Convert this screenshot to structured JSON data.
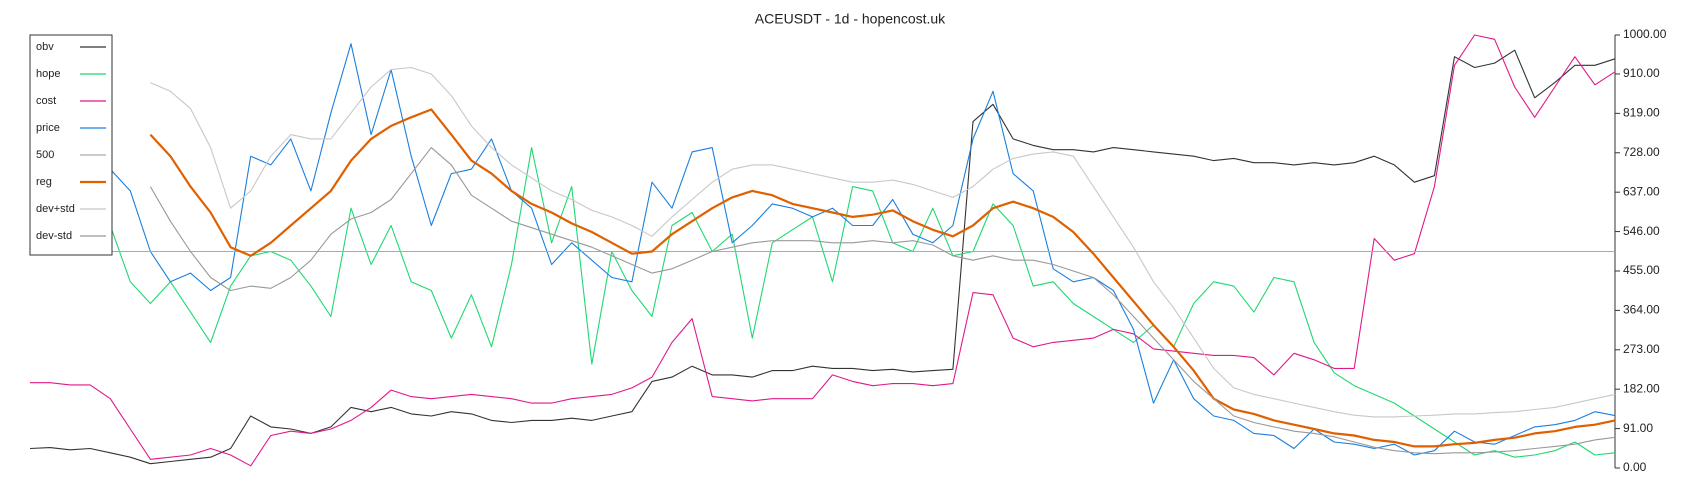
{
  "chart_data": {
    "type": "line",
    "title": "ACEUSDT - 1d - hopencost.uk",
    "ylim": [
      0,
      1000
    ],
    "yticks": [
      {
        "value": 0,
        "label": "0.00"
      },
      {
        "value": 91,
        "label": "91.00"
      },
      {
        "value": 182,
        "label": "182.00"
      },
      {
        "value": 273,
        "label": "273.00"
      },
      {
        "value": 364,
        "label": "364.00"
      },
      {
        "value": 455,
        "label": "455.00"
      },
      {
        "value": 546,
        "label": "546.00"
      },
      {
        "value": 637,
        "label": "637.00"
      },
      {
        "value": 728,
        "label": "728.00"
      },
      {
        "value": 819,
        "label": "819.00"
      },
      {
        "value": 910,
        "label": "910.00"
      },
      {
        "value": 1000,
        "label": "1000.00"
      }
    ],
    "legend_position": "upper left",
    "series": [
      {
        "name": "obv",
        "color": "#333333",
        "values": [
          45,
          47,
          42,
          45,
          35,
          25,
          10,
          15,
          20,
          25,
          45,
          120,
          95,
          90,
          80,
          95,
          140,
          130,
          140,
          125,
          120,
          130,
          125,
          110,
          105,
          110,
          110,
          115,
          110,
          120,
          130,
          200,
          210,
          235,
          215,
          215,
          210,
          225,
          225,
          235,
          230,
          230,
          225,
          228,
          222,
          225,
          228,
          800,
          840,
          760,
          745,
          735,
          735,
          730,
          740,
          735,
          730,
          725,
          720,
          710,
          715,
          705,
          705,
          700,
          705,
          700,
          705,
          720,
          700,
          660,
          675,
          950,
          925,
          935,
          965,
          855,
          890,
          930,
          930,
          945
        ]
      },
      {
        "name": "hope",
        "color": "#1fd870",
        "values": [
          null,
          null,
          null,
          null,
          560,
          430,
          380,
          430,
          360,
          290,
          420,
          490,
          500,
          480,
          420,
          350,
          600,
          470,
          560,
          430,
          410,
          300,
          400,
          280,
          470,
          740,
          520,
          650,
          240,
          500,
          410,
          350,
          560,
          590,
          500,
          540,
          300,
          520,
          550,
          580,
          430,
          650,
          640,
          520,
          500,
          600,
          490,
          500,
          610,
          560,
          420,
          430,
          380,
          350,
          320,
          290,
          330,
          280,
          380,
          430,
          420,
          360,
          440,
          430,
          290,
          220,
          190,
          170,
          150,
          120,
          90,
          60,
          30,
          40,
          25,
          30,
          40,
          60,
          30,
          35
        ]
      },
      {
        "name": "cost",
        "color": "#e0198a",
        "values": [
          197,
          197,
          192,
          192,
          160,
          90,
          20,
          25,
          30,
          45,
          30,
          5,
          75,
          85,
          80,
          90,
          110,
          140,
          180,
          165,
          160,
          165,
          170,
          165,
          160,
          150,
          150,
          160,
          165,
          170,
          185,
          210,
          290,
          345,
          165,
          160,
          155,
          160,
          160,
          160,
          215,
          200,
          190,
          195,
          195,
          190,
          195,
          405,
          400,
          300,
          280,
          290,
          295,
          300,
          320,
          310,
          275,
          270,
          265,
          260,
          260,
          255,
          215,
          265,
          250,
          230,
          230,
          530,
          480,
          495,
          650,
          930,
          1000,
          990,
          880,
          810,
          880,
          950,
          885,
          915
        ]
      },
      {
        "name": "price",
        "color": "#1a7fe0",
        "values": [
          null,
          null,
          null,
          null,
          690,
          640,
          500,
          430,
          450,
          410,
          440,
          720,
          700,
          760,
          640,
          820,
          980,
          770,
          920,
          720,
          560,
          680,
          690,
          760,
          640,
          600,
          470,
          520,
          480,
          440,
          430,
          660,
          600,
          730,
          740,
          520,
          560,
          610,
          600,
          580,
          600,
          560,
          560,
          620,
          540,
          520,
          560,
          760,
          870,
          680,
          640,
          460,
          430,
          440,
          410,
          320,
          150,
          250,
          160,
          120,
          110,
          80,
          75,
          45,
          90,
          60,
          55,
          45,
          55,
          30,
          40,
          85,
          60,
          55,
          75,
          95,
          100,
          110,
          130,
          121
        ]
      },
      {
        "name": "500",
        "color": "#aaaaaa",
        "values": [
          500,
          500,
          500,
          500,
          500,
          500,
          500,
          500,
          500,
          500,
          500,
          500,
          500,
          500,
          500,
          500,
          500,
          500,
          500,
          500,
          500,
          500,
          500,
          500,
          500,
          500,
          500,
          500,
          500,
          500,
          500,
          500,
          500,
          500,
          500,
          500,
          500,
          500,
          500,
          500,
          500,
          500,
          500,
          500,
          500,
          500,
          500,
          500,
          500,
          500,
          500,
          500,
          500,
          500,
          500,
          500,
          500,
          500,
          500,
          500,
          500,
          500,
          500,
          500,
          500,
          500,
          500,
          500,
          500,
          500,
          500,
          500,
          500,
          500,
          500,
          500,
          500,
          500,
          500,
          500
        ]
      },
      {
        "name": "reg",
        "color": "#e06000",
        "values": [
          null,
          null,
          null,
          null,
          null,
          null,
          770,
          720,
          650,
          590,
          510,
          490,
          520,
          560,
          600,
          640,
          710,
          760,
          790,
          810,
          828,
          770,
          710,
          680,
          640,
          610,
          590,
          565,
          545,
          520,
          495,
          500,
          540,
          570,
          600,
          625,
          640,
          630,
          610,
          600,
          590,
          580,
          585,
          595,
          570,
          550,
          535,
          560,
          600,
          615,
          600,
          580,
          545,
          495,
          440,
          385,
          330,
          280,
          225,
          160,
          135,
          125,
          110,
          100,
          90,
          80,
          75,
          65,
          60,
          50,
          50,
          55,
          58,
          65,
          70,
          80,
          85,
          95,
          100,
          110
        ]
      },
      {
        "name": "dev+std",
        "color": "#c8c8c8",
        "values": [
          null,
          null,
          null,
          null,
          null,
          null,
          890,
          870,
          830,
          740,
          600,
          640,
          720,
          770,
          760,
          760,
          820,
          880,
          920,
          925,
          910,
          860,
          790,
          740,
          700,
          670,
          640,
          620,
          595,
          580,
          560,
          535,
          580,
          620,
          660,
          690,
          700,
          700,
          690,
          680,
          670,
          660,
          660,
          665,
          655,
          640,
          625,
          650,
          690,
          715,
          725,
          730,
          720,
          650,
          580,
          510,
          430,
          370,
          300,
          230,
          185,
          170,
          160,
          150,
          140,
          130,
          122,
          118,
          118,
          120,
          122,
          125,
          125,
          128,
          130,
          135,
          140,
          150,
          160,
          170
        ]
      },
      {
        "name": "dev-std",
        "color": "#999999",
        "values": [
          null,
          null,
          null,
          null,
          null,
          null,
          650,
          570,
          500,
          440,
          410,
          420,
          415,
          440,
          480,
          540,
          575,
          590,
          620,
          680,
          740,
          700,
          630,
          600,
          570,
          555,
          540,
          525,
          510,
          490,
          470,
          450,
          460,
          480,
          500,
          510,
          520,
          525,
          525,
          525,
          520,
          520,
          525,
          520,
          525,
          515,
          490,
          480,
          490,
          480,
          480,
          470,
          455,
          440,
          400,
          350,
          300,
          250,
          200,
          160,
          120,
          105,
          95,
          85,
          80,
          72,
          60,
          48,
          40,
          35,
          33,
          35,
          35,
          37,
          40,
          45,
          50,
          55,
          65,
          71
        ]
      }
    ]
  }
}
